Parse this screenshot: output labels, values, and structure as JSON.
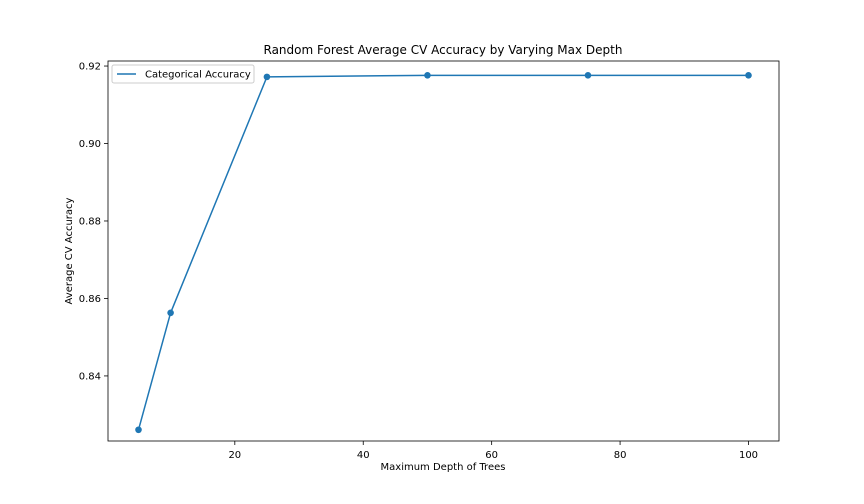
{
  "chart_data": {
    "type": "line",
    "title": "Random Forest Average CV Accuracy by Varying Max Depth",
    "xlabel": "Maximum Depth of Trees",
    "ylabel": "Average CV Accuracy",
    "xlim": [
      0.25,
      104.75
    ],
    "ylim": [
      0.8232,
      0.9213
    ],
    "xticks": [
      20,
      40,
      60,
      80,
      100
    ],
    "xtick_labels": [
      "20",
      "40",
      "60",
      "80",
      "100"
    ],
    "yticks": [
      0.84,
      0.86,
      0.88,
      0.9,
      0.92
    ],
    "ytick_labels": [
      "0.84",
      "0.86",
      "0.88",
      "0.90",
      "0.92"
    ],
    "grid": false,
    "legend_position": "top-left",
    "series": [
      {
        "name": "Categorical Accuracy",
        "color": "#1f77b4",
        "marker": "circle",
        "x": [
          5,
          10,
          25,
          50,
          75,
          100
        ],
        "y": [
          0.8261,
          0.8563,
          0.9172,
          0.9176,
          0.9176,
          0.9176
        ]
      }
    ]
  }
}
